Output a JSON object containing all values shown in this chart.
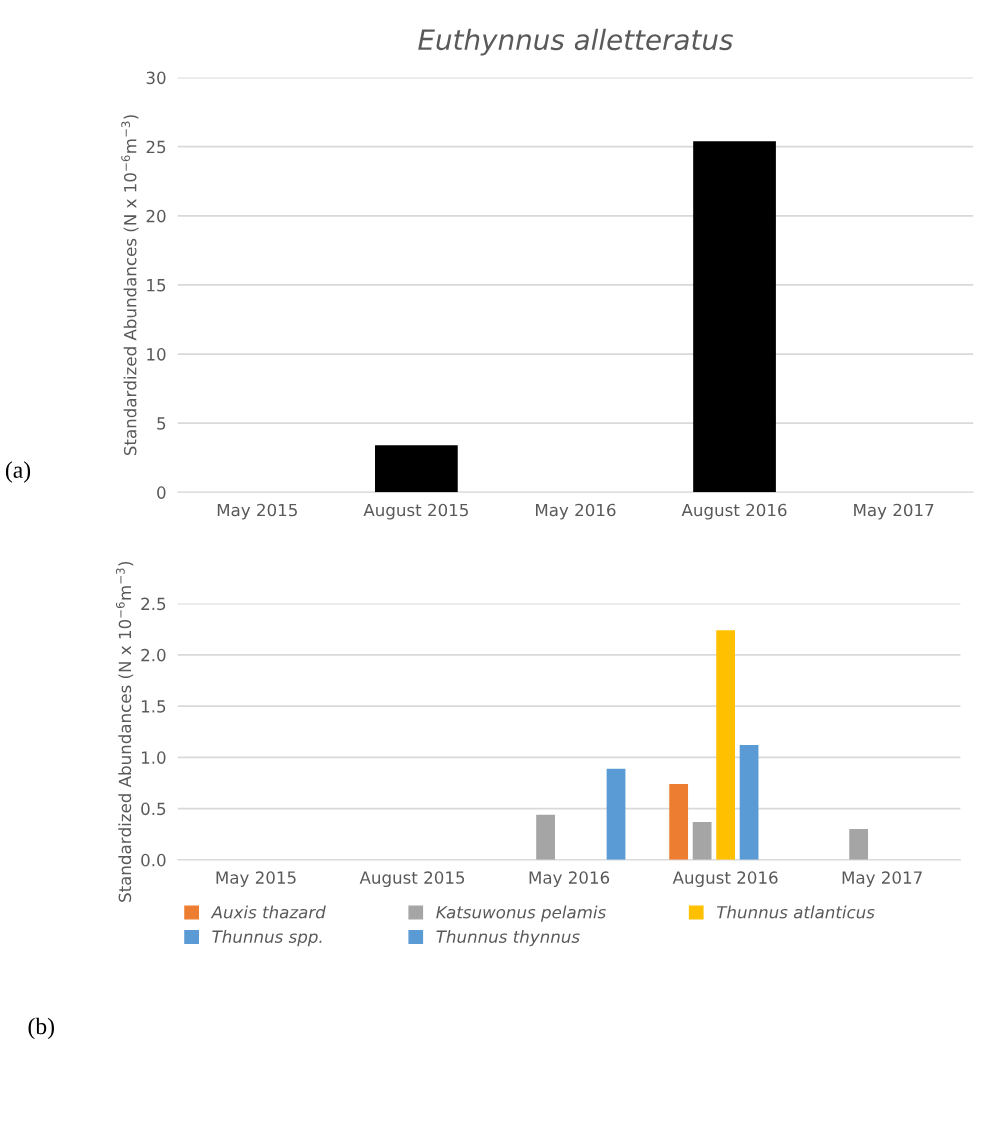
{
  "chart_data": [
    {
      "type": "bar",
      "title": "Euthynnus alletteratus",
      "ylabel": "Standardized Abundances (N x 10$^{−6}$m$^{−3}$)",
      "categories": [
        "May 2015",
        "August 2015",
        "May 2016",
        "August 2016",
        "May 2017"
      ],
      "series": [
        {
          "color": "#000000",
          "values": [
            0,
            3.4,
            0,
            25.4,
            0
          ]
        }
      ],
      "ylim": [
        0,
        30
      ],
      "yticks": [
        0,
        5,
        10,
        15,
        20,
        25,
        30
      ],
      "grid": "y",
      "legend": false,
      "annotations": [
        "(a)"
      ]
    },
    {
      "type": "bar",
      "ylabel": "Standardized Abundances (N x 10$^{−6}$m$^{−3}$)",
      "categories": [
        "May 2015",
        "August 2015",
        "May 2016",
        "August 2016",
        "May 2017"
      ],
      "series": [
        {
          "name": "Auxis thazard",
          "color": "#ed7d31",
          "values": [
            null,
            null,
            null,
            0.74,
            null
          ]
        },
        {
          "name": "Katsuwonus pelamis",
          "color": "#a5a5a5",
          "values": [
            null,
            null,
            0.44,
            0.37,
            0.3
          ]
        },
        {
          "name": "Thunnus atlanticus",
          "color": "#ffc000",
          "values": [
            null,
            null,
            null,
            2.24,
            null
          ]
        },
        {
          "name": "Thunnus spp.",
          "color": "#5b9bd5",
          "values": [
            null,
            null,
            null,
            1.12,
            null
          ]
        },
        {
          "name": "Thunnus thynnus",
          "color": "#5b9bd5",
          "values": [
            null,
            null,
            0.89,
            null,
            null
          ]
        }
      ],
      "ylim": [
        0,
        2.5
      ],
      "yticks": [
        {
          "value": 0,
          "label": "0.0"
        },
        {
          "value": 0.5,
          "label": "0.5"
        },
        {
          "value": 1,
          "label": "1.0"
        },
        {
          "value": 1.5,
          "label": "1.5"
        },
        {
          "value": 2,
          "label": "2.0"
        },
        {
          "value": 2.5,
          "label": "2.5"
        }
      ],
      "grid": "y",
      "legend": "bottom",
      "annotations": [
        "(b)"
      ]
    }
  ]
}
